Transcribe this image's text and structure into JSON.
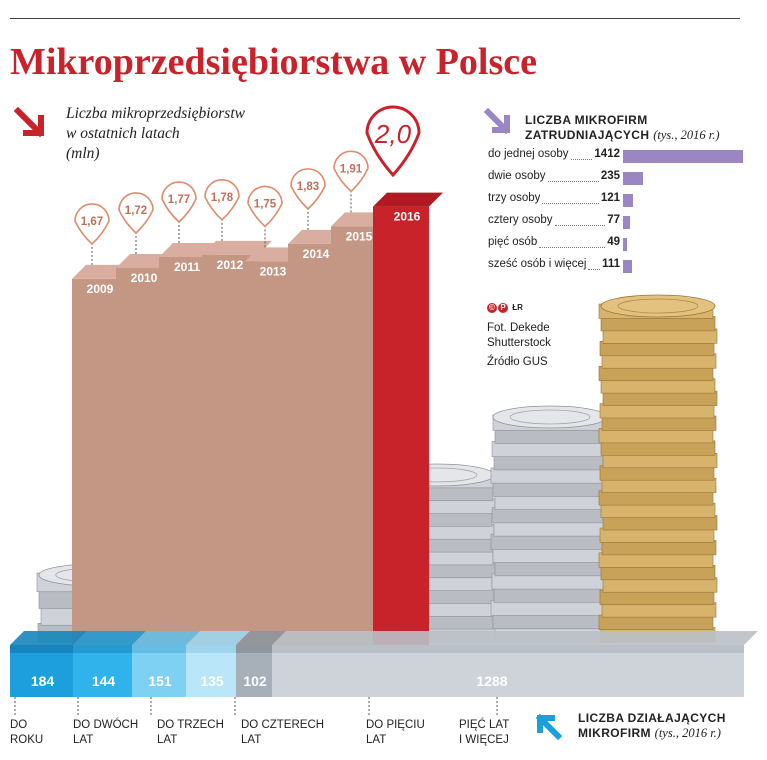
{
  "title": "Mikroprzedsiębiorstwa w Polsce",
  "colors": {
    "red": "#c8222b",
    "bar": "#c49684",
    "violet": "#9b86c4",
    "blue": "#1e9fdd"
  },
  "chart_data": [
    {
      "type": "bar",
      "title": [
        "Liczba mikroprzedsiębiorstw",
        "w ostatnich latach",
        "(mln)"
      ],
      "categories": [
        "2009",
        "2010",
        "2011",
        "2012",
        "2013",
        "2014",
        "2015",
        "2016"
      ],
      "values": [
        1.67,
        1.72,
        1.77,
        1.78,
        1.75,
        1.83,
        1.91,
        2.0
      ],
      "value_labels": [
        "1,67",
        "1,72",
        "1,77",
        "1,78",
        "1,75",
        "1,83",
        "1,91",
        "2,0"
      ],
      "highlight": "2016"
    },
    {
      "type": "bar",
      "title": "Liczba mikrofirm zatrudniających",
      "title_note": "(tys., 2016 r.)",
      "categories": [
        "do jednej osoby",
        "dwie osoby",
        "trzy osoby",
        "cztery osoby",
        "pięć osób",
        "sześć osób i więcej"
      ],
      "values": [
        1412,
        235,
        121,
        77,
        49,
        111
      ]
    },
    {
      "type": "bar",
      "title": "Liczba działających mikrofirm",
      "title_note": "(tys., 2016 r.)",
      "categories": [
        "DO ROKU",
        "DO DWÓCH LAT",
        "DO TRZECH LAT",
        "DO CZTERECH LAT",
        "DO PIĘCIU LAT",
        "PIĘĆ LAT I WIĘCEJ"
      ],
      "values": [
        184,
        144,
        151,
        135,
        102,
        1288
      ]
    }
  ],
  "credits": {
    "cp": "CP",
    "cp_suffix": "ŁR",
    "photo": "Fot. Dekede",
    "photo2": "Shutterstock",
    "source": "Źródło GUS"
  }
}
